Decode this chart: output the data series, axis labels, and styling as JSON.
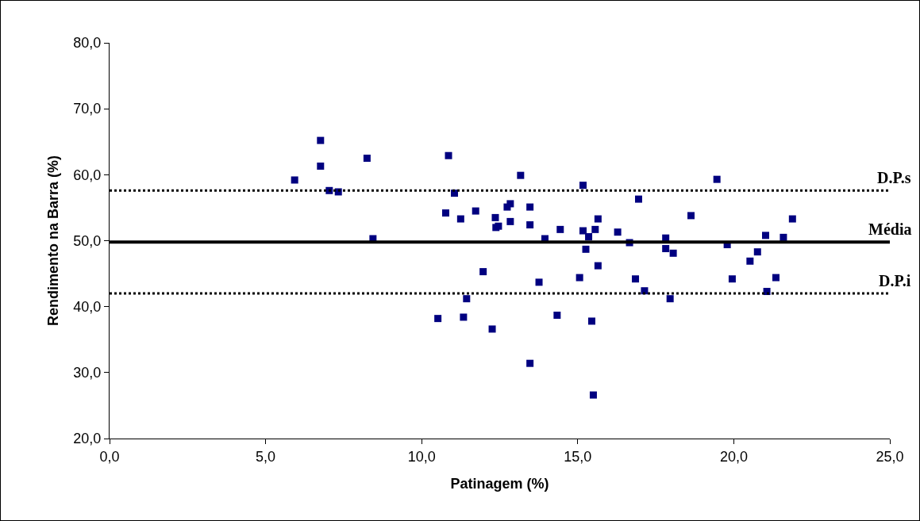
{
  "chart_data": {
    "type": "scatter",
    "xlabel": "Patinagem (%)",
    "ylabel": "Rendimento na Barra (%)",
    "xlim": [
      0,
      25
    ],
    "ylim": [
      20,
      80
    ],
    "xticks": [
      {
        "value": 0,
        "label": "0,0"
      },
      {
        "value": 5,
        "label": "5,0"
      },
      {
        "value": 10,
        "label": "10,0"
      },
      {
        "value": 15,
        "label": "15,0"
      },
      {
        "value": 20,
        "label": "20,0"
      },
      {
        "value": 25,
        "label": "25,0"
      }
    ],
    "yticks": [
      {
        "value": 20,
        "label": "20,0"
      },
      {
        "value": 30,
        "label": "30,0"
      },
      {
        "value": 40,
        "label": "40,0"
      },
      {
        "value": 50,
        "label": "50,0"
      },
      {
        "value": 60,
        "label": "60,0"
      },
      {
        "value": 70,
        "label": "70,0"
      },
      {
        "value": 80,
        "label": "80,0"
      }
    ],
    "grid": false,
    "marker": "square",
    "series": [
      {
        "color": "#000080",
        "x": [
          6.76,
          6.76,
          5.93,
          7.04,
          7.33,
          8.25,
          8.44,
          10.86,
          13.17,
          11.05,
          10.77,
          11.25,
          11.73,
          12.36,
          12.46,
          12.38,
          12.74,
          12.84,
          12.84,
          11.97,
          11.44,
          10.52,
          11.34,
          12.26,
          13.47,
          13.47,
          13.95,
          14.44,
          15.17,
          15.17,
          15.35,
          15.56,
          15.65,
          15.26,
          15.65,
          13.76,
          15.06,
          14.34,
          15.45,
          13.47,
          16.28,
          16.66,
          16.95,
          16.85,
          17.14,
          17.82,
          17.82,
          18.06,
          17.96,
          18.63,
          19.46,
          19.79,
          19.95,
          20.52,
          20.76,
          21.02,
          21.06,
          21.35,
          21.59,
          21.88,
          15.5
        ],
        "values": [
          65.2,
          61.3,
          59.2,
          57.6,
          57.4,
          62.5,
          50.3,
          62.9,
          59.9,
          57.2,
          54.2,
          53.3,
          54.5,
          53.5,
          52.2,
          52.0,
          55.1,
          55.6,
          52.9,
          45.3,
          41.2,
          38.2,
          38.4,
          36.6,
          55.1,
          52.4,
          50.3,
          51.7,
          58.4,
          51.5,
          50.6,
          51.7,
          53.3,
          48.7,
          46.2,
          43.7,
          44.4,
          38.7,
          37.8,
          31.4,
          51.3,
          49.7,
          56.3,
          44.2,
          42.4,
          50.4,
          48.8,
          48.1,
          41.2,
          53.8,
          59.3,
          49.4,
          44.2,
          46.9,
          48.3,
          50.8,
          42.3,
          44.4,
          50.5,
          53.3,
          26.6
        ]
      }
    ],
    "ref_lines": [
      {
        "axis": "y",
        "value": 57.6,
        "label": "D.P.s",
        "color": "#000000",
        "line_style": "dotted"
      },
      {
        "axis": "y",
        "value": 49.8,
        "label": "Média",
        "color": "#000000",
        "line_style": "solid"
      },
      {
        "axis": "y",
        "value": 42.0,
        "label": "D.P.i",
        "color": "#000000",
        "line_style": "dotted"
      }
    ]
  }
}
